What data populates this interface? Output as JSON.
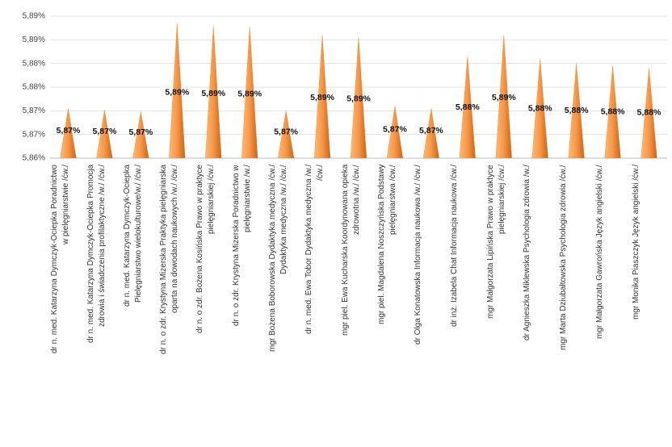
{
  "chart_data": {
    "type": "cone",
    "categories": [
      "dr n. med. Katarzyna Dymczyk-Ociepka Poradnictwo\nw pielęgniarstwie /ćw./",
      "dr n. med. Katarzyna Dymczyk-Ociepka  Promocja\nzdrowia i świadczenia profilaktyczne /w./ /ćw./",
      "dr n. med. Katarzyna Dymczyk-Ociepka\nPielęgniarstwo wielokulturowe/w./ /ćw./",
      "dr n. o zdr. Krystyna Mizerska Praktyka pielęgniarska\noparta na dowodach naukowych /w./ /ćw./",
      "dr n. o zdr. Bożena Kosińska Prawo w praktyce\npielęgniarskiej /ćw./",
      "dr n. o zdr. Krystyna Mizerska Poradnictwo w\npielęgniarstwie /w./",
      "mgr Bożena Boborowska Dydaktyka medyczna /ćw./\nDydaktyka medyczna /w./ /ćw./",
      "dr n. med. Ewa Tobor Dydaktyka medyczna /w./\n/ćw./",
      "mgr piel. Ewa Kucharska Koordynowana opieka\nzdrowotna /w./ /ćw./",
      "mgr piel. Magdalena Noszczyńska Podstawy\npielęgniarstwa /ćw./",
      "dr Olga Konatowska Informacja naukowa /w./ /ćw./",
      "dr inż. Izabela Chat Informacja naukowa /ćw./",
      "mgr Małgorzata Lipińska Prawo w praktyce\npielęgniarskiej /ćw./",
      "dr Agnieszka Miklewska Psychologia zdrowia /w./",
      "mgr Marta Dziubałtowska Psychologia zdrowia /ćw./",
      "mgr Małgorzata Gawrońska Język angielski /ćw./",
      "mgr Monika Piaszczyk Język angielski /ćw./"
    ],
    "values": [
      5.8705,
      5.8702,
      5.8698,
      5.8885,
      5.888,
      5.8878,
      5.87,
      5.886,
      5.8855,
      5.871,
      5.8705,
      5.8815,
      5.886,
      5.881,
      5.88,
      5.8795,
      5.879
    ],
    "value_labels": [
      "5,87%",
      "5,87%",
      "5,87%",
      "5,89%",
      "5,89%",
      "5,89%",
      "5,87%",
      "5,89%",
      "5,89%",
      "5,87%",
      "5,87%",
      "5,88%",
      "5,89%",
      "5,88%",
      "5,88%",
      "5,88%",
      "5,88%"
    ],
    "color": "#f79646",
    "ylim": [
      5.86,
      5.89
    ],
    "yticks": [
      {
        "value": 5.86,
        "label": "5,86%"
      },
      {
        "value": 5.865,
        "label": "5,87%"
      },
      {
        "value": 5.87,
        "label": "5,87%"
      },
      {
        "value": 5.875,
        "label": "5,88%"
      },
      {
        "value": 5.88,
        "label": "5,88%"
      },
      {
        "value": 5.885,
        "label": "5,89%"
      },
      {
        "value": 5.89,
        "label": "5,89%"
      }
    ],
    "grid": true
  }
}
